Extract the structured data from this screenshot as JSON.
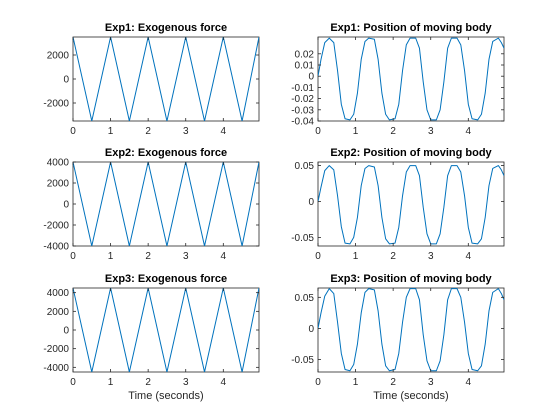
{
  "chart_data": [
    {
      "type": "line",
      "title": "Exp1: Exogenous force",
      "xlabel": "",
      "xlim": [
        0,
        4.95
      ],
      "ylim": [
        -3500,
        3500
      ],
      "xticks": [
        0,
        1,
        2,
        3,
        4
      ],
      "xtick_labels": [
        "0",
        "1",
        "2",
        "3",
        "4"
      ],
      "yticks": [
        -2000,
        0,
        2000
      ],
      "ytick_labels": [
        "-2000",
        "0",
        "2000"
      ],
      "grid": false,
      "series": [
        {
          "color": "#0072bd",
          "points": [
            [
              0,
              3500
            ],
            [
              0.5,
              -3500
            ],
            [
              1,
              3500
            ],
            [
              1.5,
              -3500
            ],
            [
              2,
              3500
            ],
            [
              2.5,
              -3500
            ],
            [
              3,
              3500
            ],
            [
              3.5,
              -3500
            ],
            [
              4,
              3500
            ],
            [
              4.5,
              -3500
            ],
            [
              4.95,
              3500
            ]
          ]
        }
      ]
    },
    {
      "type": "line",
      "title": "Exp1: Position of moving body",
      "xlabel": "",
      "xlim": [
        0,
        4.95
      ],
      "ylim": [
        -0.04,
        0.035
      ],
      "xticks": [
        0,
        1,
        2,
        3,
        4
      ],
      "xtick_labels": [
        "0",
        "1",
        "2",
        "3",
        "4"
      ],
      "yticks": [
        -0.04,
        -0.03,
        -0.02,
        -0.01,
        0,
        0.01,
        0.02
      ],
      "ytick_labels": [
        "-0.04",
        "-0.03",
        "-0.02",
        "-0.01",
        "0",
        "0.01",
        "0.02"
      ],
      "grid": false,
      "series": [
        {
          "color": "#0072bd",
          "points": [
            [
              0,
              0
            ],
            [
              0.08,
              0.015
            ],
            [
              0.18,
              0.03
            ],
            [
              0.3,
              0.034
            ],
            [
              0.42,
              0.03
            ],
            [
              0.52,
              0.005
            ],
            [
              0.62,
              -0.025
            ],
            [
              0.72,
              -0.038
            ],
            [
              0.85,
              -0.039
            ],
            [
              0.95,
              -0.034
            ],
            [
              1.05,
              -0.015
            ],
            [
              1.15,
              0.015
            ],
            [
              1.25,
              0.031
            ],
            [
              1.35,
              0.034
            ],
            [
              1.5,
              0.033
            ],
            [
              1.6,
              0.015
            ],
            [
              1.7,
              -0.015
            ],
            [
              1.8,
              -0.034
            ],
            [
              1.9,
              -0.039
            ],
            [
              2.05,
              -0.038
            ],
            [
              2.15,
              -0.025
            ],
            [
              2.25,
              0.005
            ],
            [
              2.35,
              0.028
            ],
            [
              2.45,
              0.034
            ],
            [
              2.6,
              0.034
            ],
            [
              2.7,
              0.025
            ],
            [
              2.8,
              -0.005
            ],
            [
              2.9,
              -0.03
            ],
            [
              3.0,
              -0.039
            ],
            [
              3.15,
              -0.039
            ],
            [
              3.25,
              -0.03
            ],
            [
              3.35,
              -0.005
            ],
            [
              3.45,
              0.025
            ],
            [
              3.55,
              0.034
            ],
            [
              3.7,
              0.034
            ],
            [
              3.8,
              0.028
            ],
            [
              3.9,
              0.005
            ],
            [
              4.0,
              -0.025
            ],
            [
              4.1,
              -0.038
            ],
            [
              4.25,
              -0.039
            ],
            [
              4.35,
              -0.034
            ],
            [
              4.45,
              -0.015
            ],
            [
              4.55,
              0.015
            ],
            [
              4.65,
              0.031
            ],
            [
              4.8,
              0.034
            ],
            [
              4.88,
              0.03
            ],
            [
              4.95,
              0.025
            ]
          ]
        }
      ]
    },
    {
      "type": "line",
      "title": "Exp2: Exogenous force",
      "xlabel": "",
      "xlim": [
        0,
        4.95
      ],
      "ylim": [
        -4000,
        4000
      ],
      "xticks": [
        0,
        1,
        2,
        3,
        4
      ],
      "xtick_labels": [
        "0",
        "1",
        "2",
        "3",
        "4"
      ],
      "yticks": [
        -4000,
        -2000,
        0,
        2000,
        4000
      ],
      "ytick_labels": [
        "-4000",
        "-2000",
        "0",
        "2000",
        "4000"
      ],
      "grid": false,
      "series": [
        {
          "color": "#0072bd",
          "points": [
            [
              0,
              4000
            ],
            [
              0.5,
              -4000
            ],
            [
              1,
              4000
            ],
            [
              1.5,
              -4000
            ],
            [
              2,
              4000
            ],
            [
              2.5,
              -4000
            ],
            [
              3,
              4000
            ],
            [
              3.5,
              -4000
            ],
            [
              4,
              4000
            ],
            [
              4.5,
              -4000
            ],
            [
              4.95,
              4000
            ]
          ]
        }
      ]
    },
    {
      "type": "line",
      "title": "Exp2: Position of moving body",
      "xlabel": "",
      "xlim": [
        0,
        4.95
      ],
      "ylim": [
        -0.062,
        0.055
      ],
      "xticks": [
        0,
        1,
        2,
        3,
        4
      ],
      "xtick_labels": [
        "0",
        "1",
        "2",
        "3",
        "4"
      ],
      "yticks": [
        -0.05,
        0,
        0.05
      ],
      "ytick_labels": [
        "-0.05",
        "0",
        "0.05"
      ],
      "grid": false,
      "series": [
        {
          "color": "#0072bd",
          "points": [
            [
              0,
              0
            ],
            [
              0.08,
              0.02
            ],
            [
              0.18,
              0.043
            ],
            [
              0.3,
              0.05
            ],
            [
              0.42,
              0.044
            ],
            [
              0.52,
              0.008
            ],
            [
              0.62,
              -0.035
            ],
            [
              0.72,
              -0.058
            ],
            [
              0.85,
              -0.059
            ],
            [
              0.95,
              -0.05
            ],
            [
              1.05,
              -0.022
            ],
            [
              1.15,
              0.022
            ],
            [
              1.25,
              0.046
            ],
            [
              1.35,
              0.05
            ],
            [
              1.5,
              0.048
            ],
            [
              1.6,
              0.022
            ],
            [
              1.7,
              -0.022
            ],
            [
              1.8,
              -0.052
            ],
            [
              1.9,
              -0.059
            ],
            [
              2.05,
              -0.058
            ],
            [
              2.15,
              -0.036
            ],
            [
              2.25,
              0.008
            ],
            [
              2.35,
              0.041
            ],
            [
              2.45,
              0.05
            ],
            [
              2.6,
              0.05
            ],
            [
              2.7,
              0.036
            ],
            [
              2.8,
              -0.008
            ],
            [
              2.9,
              -0.045
            ],
            [
              3.0,
              -0.059
            ],
            [
              3.15,
              -0.059
            ],
            [
              3.25,
              -0.045
            ],
            [
              3.35,
              -0.008
            ],
            [
              3.45,
              0.036
            ],
            [
              3.55,
              0.05
            ],
            [
              3.7,
              0.05
            ],
            [
              3.8,
              0.041
            ],
            [
              3.9,
              0.008
            ],
            [
              4.0,
              -0.036
            ],
            [
              4.1,
              -0.058
            ],
            [
              4.25,
              -0.059
            ],
            [
              4.35,
              -0.052
            ],
            [
              4.45,
              -0.022
            ],
            [
              4.55,
              0.022
            ],
            [
              4.65,
              0.046
            ],
            [
              4.8,
              0.05
            ],
            [
              4.88,
              0.044
            ],
            [
              4.95,
              0.036
            ]
          ]
        }
      ]
    },
    {
      "type": "line",
      "title": "Exp3: Exogenous force",
      "xlabel": "Time (seconds)",
      "xlim": [
        0,
        4.95
      ],
      "ylim": [
        -4500,
        4500
      ],
      "xticks": [
        0,
        1,
        2,
        3,
        4
      ],
      "xtick_labels": [
        "0",
        "1",
        "2",
        "3",
        "4"
      ],
      "yticks": [
        -4000,
        -2000,
        0,
        2000,
        4000
      ],
      "ytick_labels": [
        "-4000",
        "-2000",
        "0",
        "2000",
        "4000"
      ],
      "grid": false,
      "series": [
        {
          "color": "#0072bd",
          "points": [
            [
              0,
              4500
            ],
            [
              0.5,
              -4500
            ],
            [
              1,
              4500
            ],
            [
              1.5,
              -4500
            ],
            [
              2,
              4500
            ],
            [
              2.5,
              -4500
            ],
            [
              3,
              4500
            ],
            [
              3.5,
              -4500
            ],
            [
              4,
              4500
            ],
            [
              4.5,
              -4500
            ],
            [
              4.95,
              4500
            ]
          ]
        }
      ]
    },
    {
      "type": "line",
      "title": "Exp3: Position of moving body",
      "xlabel": "Time (seconds)",
      "xlim": [
        0,
        4.95
      ],
      "ylim": [
        -0.07,
        0.065
      ],
      "xticks": [
        0,
        1,
        2,
        3,
        4
      ],
      "xtick_labels": [
        "0",
        "1",
        "2",
        "3",
        "4"
      ],
      "yticks": [
        -0.05,
        0,
        0.05
      ],
      "ytick_labels": [
        "-0.05",
        "0",
        "0.05"
      ],
      "grid": false,
      "series": [
        {
          "color": "#0072bd",
          "points": [
            [
              0,
              0
            ],
            [
              0.08,
              0.025
            ],
            [
              0.18,
              0.052
            ],
            [
              0.3,
              0.064
            ],
            [
              0.42,
              0.056
            ],
            [
              0.52,
              0.01
            ],
            [
              0.62,
              -0.04
            ],
            [
              0.72,
              -0.066
            ],
            [
              0.85,
              -0.068
            ],
            [
              0.95,
              -0.058
            ],
            [
              1.05,
              -0.025
            ],
            [
              1.15,
              0.025
            ],
            [
              1.25,
              0.058
            ],
            [
              1.35,
              0.064
            ],
            [
              1.5,
              0.062
            ],
            [
              1.6,
              0.028
            ],
            [
              1.7,
              -0.025
            ],
            [
              1.8,
              -0.06
            ],
            [
              1.9,
              -0.068
            ],
            [
              2.05,
              -0.066
            ],
            [
              2.15,
              -0.04
            ],
            [
              2.25,
              0.01
            ],
            [
              2.35,
              0.05
            ],
            [
              2.45,
              0.064
            ],
            [
              2.6,
              0.064
            ],
            [
              2.7,
              0.046
            ],
            [
              2.8,
              -0.01
            ],
            [
              2.9,
              -0.052
            ],
            [
              3.0,
              -0.068
            ],
            [
              3.15,
              -0.068
            ],
            [
              3.25,
              -0.052
            ],
            [
              3.35,
              -0.01
            ],
            [
              3.45,
              0.046
            ],
            [
              3.55,
              0.064
            ],
            [
              3.7,
              0.064
            ],
            [
              3.8,
              0.05
            ],
            [
              3.9,
              0.01
            ],
            [
              4.0,
              -0.04
            ],
            [
              4.1,
              -0.066
            ],
            [
              4.25,
              -0.068
            ],
            [
              4.35,
              -0.06
            ],
            [
              4.45,
              -0.025
            ],
            [
              4.55,
              0.028
            ],
            [
              4.65,
              0.058
            ],
            [
              4.8,
              0.064
            ],
            [
              4.88,
              0.056
            ],
            [
              4.95,
              0.046
            ]
          ]
        }
      ]
    }
  ]
}
